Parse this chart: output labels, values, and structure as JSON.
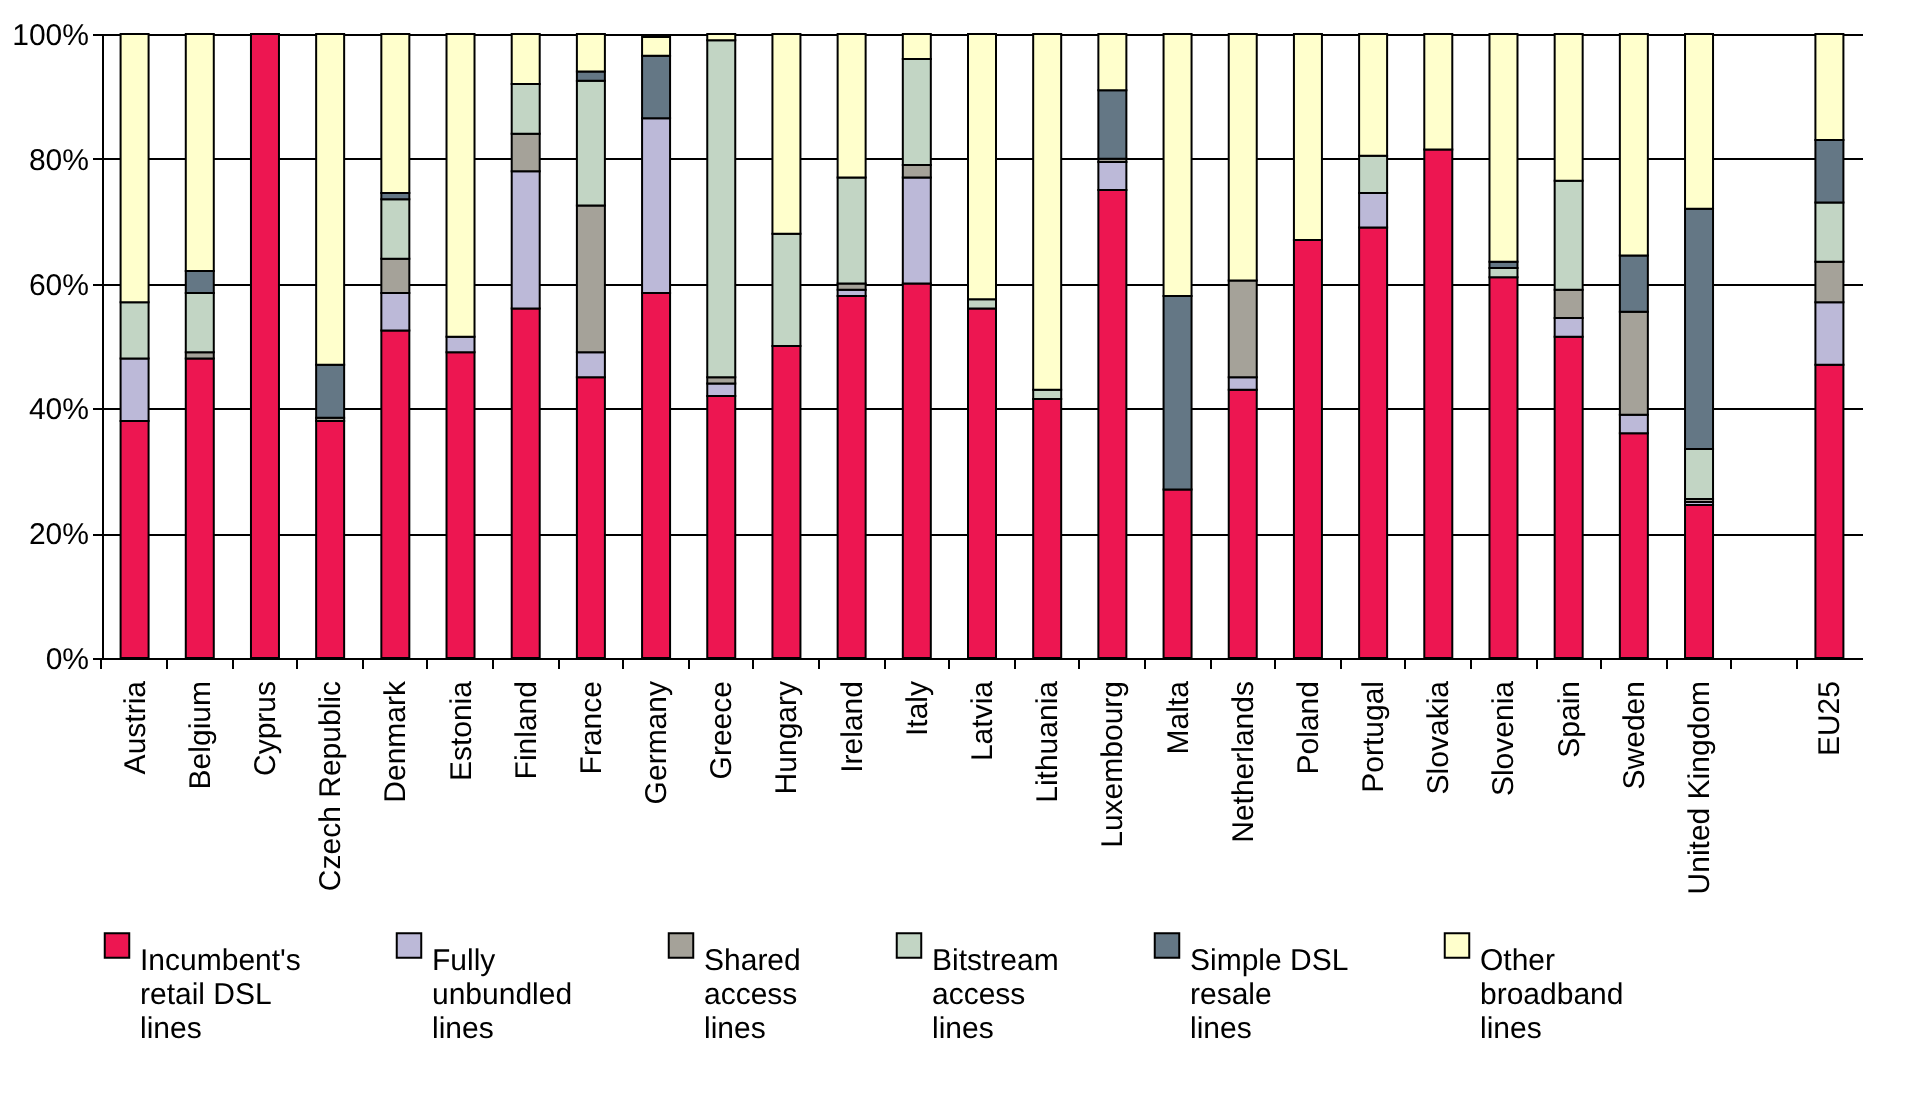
{
  "chart_data": {
    "type": "bar",
    "stacked": true,
    "categories": [
      "Austria",
      "Belgium",
      "Cyprus",
      "Czech Republic",
      "Denmark",
      "Estonia",
      "Finland",
      "France",
      "Germany",
      "Greece",
      "Hungary",
      "Ireland",
      "Italy",
      "Latvia",
      "Lithuania",
      "Luxembourg",
      "Malta",
      "Netherlands",
      "Poland",
      "Portugal",
      "Slovakia",
      "Slovenia",
      "Spain",
      "Sweden",
      "United Kingdom",
      null,
      "EU25"
    ],
    "series": [
      {
        "name": "Incumbent's retail DSL lines",
        "color": "#ed1651",
        "values": [
          38,
          48,
          100,
          38,
          52.5,
          49,
          56,
          45,
          58.5,
          42,
          50,
          58,
          60,
          56,
          41.5,
          75,
          27,
          43,
          67,
          69,
          81.5,
          61,
          51.5,
          36,
          24.5,
          null,
          47
        ]
      },
      {
        "name": "Fully unbundled lines",
        "color": "#bcb9d8",
        "values": [
          10,
          0,
          0,
          0,
          6,
          2.5,
          22,
          4,
          28,
          2,
          0,
          1,
          17,
          0,
          0,
          4.5,
          0,
          2,
          0,
          5.5,
          0,
          0,
          3,
          3,
          0.5,
          null,
          10
        ]
      },
      {
        "name": "Shared access lines",
        "color": "#a5a299",
        "values": [
          0,
          1,
          0,
          0.5,
          5.5,
          0,
          6,
          23.5,
          0,
          1,
          0,
          1,
          2,
          0,
          0,
          0.5,
          0,
          15.5,
          0,
          0,
          0,
          0,
          4.5,
          16.5,
          0.5,
          null,
          6.5
        ]
      },
      {
        "name": "Bitstream access lines",
        "color": "#c2d5c4",
        "values": [
          9,
          9.5,
          0,
          0,
          9.5,
          0,
          8,
          20,
          0,
          54,
          18,
          17,
          17,
          1.5,
          1.5,
          0,
          0,
          0,
          0,
          6,
          0,
          1.5,
          17.5,
          0,
          8,
          null,
          9.5
        ]
      },
      {
        "name": "Simple DSL resale lines",
        "color": "#647785",
        "values": [
          0,
          3.5,
          0,
          8.5,
          1,
          0,
          0,
          1.5,
          10,
          0,
          0,
          0,
          0,
          0,
          0,
          11,
          31,
          0,
          0,
          0,
          0,
          1,
          0,
          9,
          38.5,
          null,
          10
        ]
      },
      {
        "name": "Other broadband lines",
        "color": "#ffffcc",
        "values": [
          43,
          38,
          0,
          53,
          25.5,
          48.5,
          8,
          6,
          3,
          1,
          32,
          23,
          4,
          42.5,
          57,
          9,
          42,
          39.5,
          33,
          19.5,
          18.5,
          36.5,
          23.5,
          35.5,
          28,
          null,
          17
        ]
      }
    ],
    "ylim": [
      0,
      100
    ],
    "yticks": [
      {
        "value": 0,
        "label": "0%"
      },
      {
        "value": 20,
        "label": "20%"
      },
      {
        "value": 40,
        "label": "40%"
      },
      {
        "value": 60,
        "label": "60%"
      },
      {
        "value": 80,
        "label": "80%"
      },
      {
        "value": 100,
        "label": "100%"
      }
    ],
    "grid": "y",
    "legend": "bottom"
  }
}
